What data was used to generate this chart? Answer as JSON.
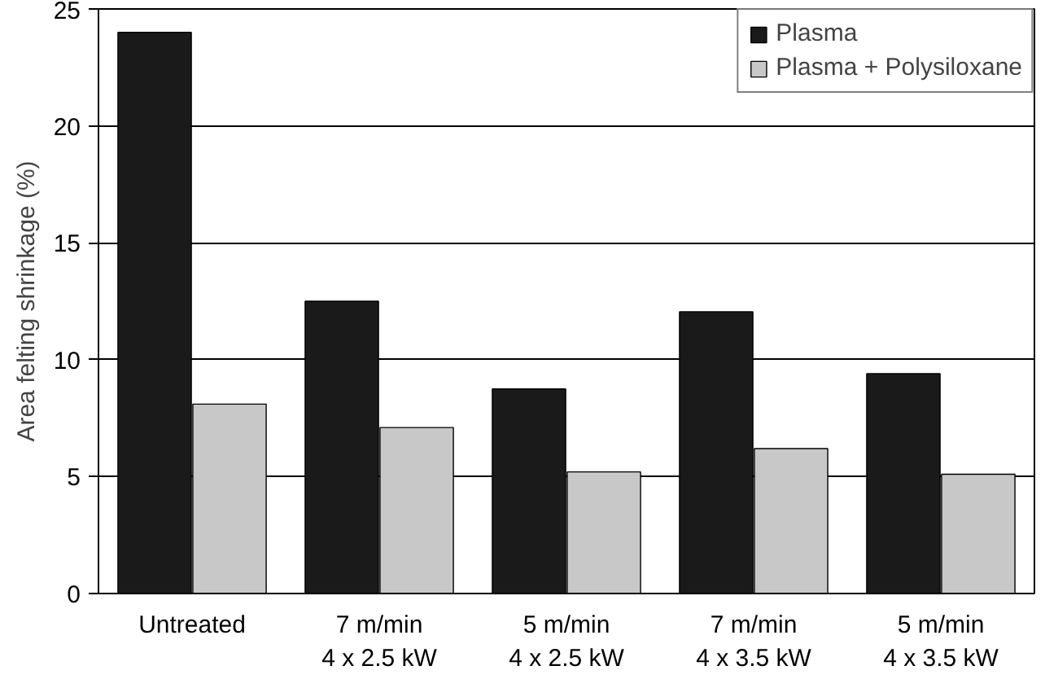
{
  "chart_data": {
    "type": "bar",
    "ylabel": "Area felting shrinkage (%)",
    "categories": [
      "Untreated",
      "7 m/min\n4 x 2.5 kW",
      "5 m/min\n4 x 2.5 kW",
      "7 m/min\n4 x 3.5 kW",
      "5 m/min\n4 x 3.5 kW"
    ],
    "series": [
      {
        "name": "Plasma",
        "color": "#1a1a1a",
        "values": [
          24,
          12.5,
          8.75,
          12.05,
          9.4
        ]
      },
      {
        "name": "Plasma + Polysiloxane",
        "color": "#c8c8c8",
        "values": [
          8.1,
          7.1,
          5.2,
          6.2,
          5.1
        ]
      }
    ],
    "ylim": [
      0,
      25
    ],
    "yticks": [
      0,
      5,
      10,
      15,
      20,
      25
    ],
    "grid": "y",
    "legend": "top right"
  }
}
